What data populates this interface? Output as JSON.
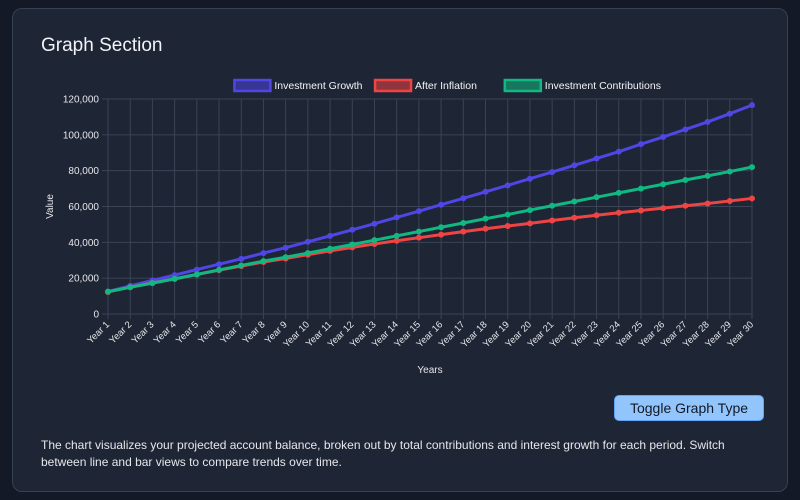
{
  "section_title": "Graph Section",
  "toggle_label": "Toggle Graph Type",
  "description": "The chart visualizes your projected account balance, broken out by total contributions and interest growth for each period. Switch between line and bar views to compare trends over time.",
  "chart_data": {
    "type": "line",
    "title": "",
    "xlabel": "Years",
    "ylabel": "Value",
    "ylim": [
      0,
      120000
    ],
    "yticks": [
      0,
      20000,
      40000,
      60000,
      80000,
      100000,
      120000
    ],
    "ytick_labels": [
      "0",
      "20,000",
      "40,000",
      "60,000",
      "80,000",
      "100,000",
      "120,000"
    ],
    "grid": true,
    "legend_position": "top",
    "categories": [
      "Year 1",
      "Year 2",
      "Year 3",
      "Year 4",
      "Year 5",
      "Year 6",
      "Year 7",
      "Year 8",
      "Year 9",
      "Year 10",
      "Year 11",
      "Year 12",
      "Year 13",
      "Year 14",
      "Year 15",
      "Year 16",
      "Year 17",
      "Year 18",
      "Year 19",
      "Year 20",
      "Year 21",
      "Year 22",
      "Year 23",
      "Year 24",
      "Year 25",
      "Year 26",
      "Year 27",
      "Year 28",
      "Year 29",
      "Year 30"
    ],
    "series": [
      {
        "name": "Investment Growth",
        "color": "#4f46e5",
        "values": [
          12500,
          15700,
          18700,
          21700,
          24800,
          27800,
          30800,
          34000,
          37000,
          40300,
          43600,
          47000,
          50400,
          53900,
          57400,
          61000,
          64600,
          68200,
          71800,
          75500,
          79200,
          83000,
          86800,
          90600,
          94800,
          98800,
          103000,
          107200,
          111800,
          116600
        ]
      },
      {
        "name": "After Inflation",
        "color": "#ef4444",
        "values": [
          12300,
          15000,
          17300,
          19600,
          22000,
          24500,
          26800,
          29000,
          31000,
          33100,
          35200,
          37200,
          39100,
          40900,
          42600,
          44300,
          46000,
          47600,
          49100,
          50600,
          52200,
          53700,
          55100,
          56500,
          57800,
          59100,
          60400,
          61700,
          63100,
          64500
        ]
      },
      {
        "name": "Investment Contributions",
        "color": "#10b981",
        "values": [
          12500,
          14900,
          17200,
          19600,
          22100,
          24600,
          27100,
          29500,
          31700,
          34000,
          36400,
          38800,
          41200,
          43600,
          46000,
          48400,
          50800,
          53200,
          55500,
          58000,
          60400,
          62800,
          65200,
          67600,
          70000,
          72400,
          74800,
          77100,
          79500,
          82000
        ]
      }
    ]
  }
}
